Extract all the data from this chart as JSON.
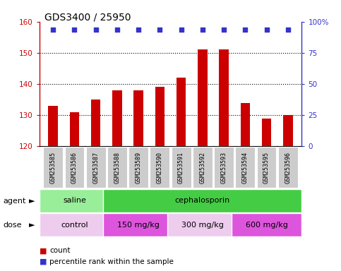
{
  "title": "GDS3400 / 25950",
  "samples": [
    "GSM253585",
    "GSM253586",
    "GSM253587",
    "GSM253588",
    "GSM253589",
    "GSM253590",
    "GSM253591",
    "GSM253592",
    "GSM253593",
    "GSM253594",
    "GSM253595",
    "GSM253596"
  ],
  "counts": [
    133,
    131,
    135,
    138,
    138,
    139,
    142,
    151,
    151,
    134,
    129,
    130
  ],
  "percentile_ranks": [
    100,
    100,
    100,
    100,
    100,
    100,
    100,
    100,
    100,
    100,
    100,
    100
  ],
  "ylim_left": [
    120,
    160
  ],
  "ylim_right": [
    0,
    100
  ],
  "yticks_left": [
    120,
    130,
    140,
    150,
    160
  ],
  "yticks_right": [
    0,
    25,
    50,
    75,
    100
  ],
  "bar_color": "#cc0000",
  "dot_color": "#3333cc",
  "bar_bottom": 120,
  "agent_groups": [
    {
      "label": "saline",
      "start": 0,
      "end": 3,
      "color": "#99ee99"
    },
    {
      "label": "cephalosporin",
      "start": 3,
      "end": 12,
      "color": "#44cc44"
    }
  ],
  "dose_groups": [
    {
      "label": "control",
      "start": 0,
      "end": 3,
      "color": "#eeccee"
    },
    {
      "label": "150 mg/kg",
      "start": 3,
      "end": 6,
      "color": "#dd55dd"
    },
    {
      "label": "300 mg/kg",
      "start": 6,
      "end": 9,
      "color": "#eeccee"
    },
    {
      "label": "600 mg/kg",
      "start": 9,
      "end": 12,
      "color": "#dd55dd"
    }
  ],
  "tick_label_bg": "#cccccc",
  "legend_count_color": "#cc0000",
  "legend_dot_color": "#3333cc",
  "grid_color": "#000000",
  "title_fontsize": 10,
  "axis_label_color_left": "#cc0000",
  "axis_label_color_right": "#3333cc",
  "right_tick_labels": [
    "0",
    "25",
    "50",
    "75",
    "100%"
  ],
  "dotted_lines": [
    130,
    140,
    150
  ],
  "bar_width": 0.45
}
